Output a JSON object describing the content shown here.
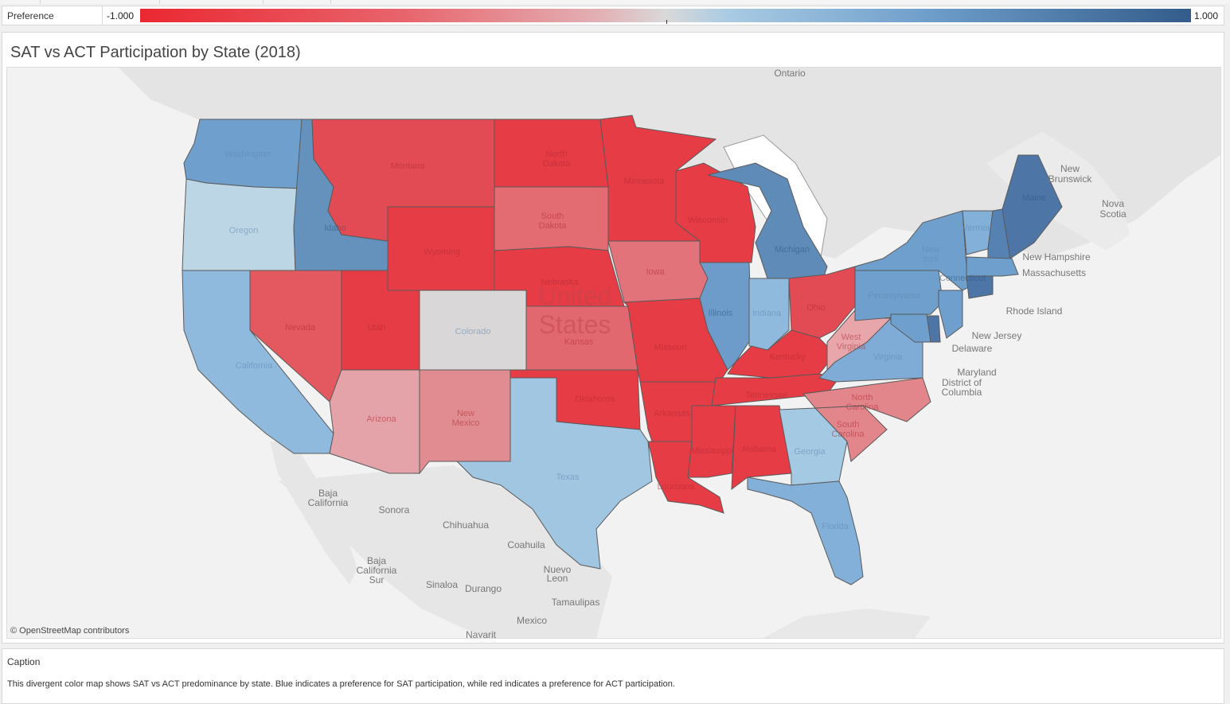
{
  "legend": {
    "title": "Preference",
    "min_label": "-1.000",
    "max_label": "1.000",
    "color_low": "#ea2832",
    "color_mid": "#d9d9d9",
    "color_high": "#335c8b"
  },
  "panel": {
    "title": "SAT vs ACT Participation by State (2018)"
  },
  "map": {
    "attribution": "© OpenStreetMap contributors",
    "country_label_line1": "United",
    "country_label_line2": "States",
    "states": [
      {
        "name": "Washington",
        "color": "#6f9fcc",
        "value": 0.6
      },
      {
        "name": "Oregon",
        "color": "#bcd6e5",
        "value": 0.25
      },
      {
        "name": "California",
        "color": "#8fbade",
        "value": 0.45
      },
      {
        "name": "Idaho",
        "color": "#6591bd",
        "value": 0.7
      },
      {
        "name": "Nevada",
        "color": "#e4585f",
        "value": -0.75
      },
      {
        "name": "Montana",
        "color": "#e34b54",
        "value": -0.85
      },
      {
        "name": "Wyoming",
        "color": "#e63c45",
        "value": -0.95
      },
      {
        "name": "Utah",
        "color": "#e63c45",
        "value": -0.95
      },
      {
        "name": "Arizona",
        "color": "#e3a3a8",
        "value": -0.35
      },
      {
        "name": "Colorado",
        "color": "#d9d7d7",
        "value": 0.0
      },
      {
        "name": "New Mexico",
        "color": "#e18c91",
        "value": -0.5
      },
      {
        "name": "North Dakota",
        "color": "#e63c45",
        "value": -0.95
      },
      {
        "name": "South Dakota",
        "color": "#e26c72",
        "value": -0.65
      },
      {
        "name": "Nebraska",
        "color": "#e63c45",
        "value": -0.95
      },
      {
        "name": "Kansas",
        "color": "#e2686f",
        "value": -0.7
      },
      {
        "name": "Oklahoma",
        "color": "#e63c45",
        "value": -0.95
      },
      {
        "name": "Texas",
        "color": "#a0c6e1",
        "value": 0.35
      },
      {
        "name": "Minnesota",
        "color": "#e63c45",
        "value": -0.95
      },
      {
        "name": "Iowa",
        "color": "#e2737a",
        "value": -0.6
      },
      {
        "name": "Missouri",
        "color": "#e63c45",
        "value": -0.95
      },
      {
        "name": "Arkansas",
        "color": "#e63c45",
        "value": -0.95
      },
      {
        "name": "Louisiana",
        "color": "#e63c45",
        "value": -0.95
      },
      {
        "name": "Wisconsin",
        "color": "#e63c45",
        "value": -0.95
      },
      {
        "name": "Illinois",
        "color": "#6d9cca",
        "value": 0.65
      },
      {
        "name": "Michigan",
        "color": "#5f8bb8",
        "value": 0.75
      },
      {
        "name": "Indiana",
        "color": "#8fbade",
        "value": 0.45
      },
      {
        "name": "Ohio",
        "color": "#e34b54",
        "value": -0.85
      },
      {
        "name": "Kentucky",
        "color": "#e63c45",
        "value": -0.95
      },
      {
        "name": "Tennessee",
        "color": "#e63c45",
        "value": -0.95
      },
      {
        "name": "Mississippi",
        "color": "#e63c45",
        "value": -0.95
      },
      {
        "name": "Alabama",
        "color": "#e63c45",
        "value": -0.95
      },
      {
        "name": "Georgia",
        "color": "#a4c9e2",
        "value": 0.35
      },
      {
        "name": "Florida",
        "color": "#82b0d8",
        "value": 0.5
      },
      {
        "name": "South Carolina",
        "color": "#e3868c",
        "value": -0.5
      },
      {
        "name": "North Carolina",
        "color": "#e3868c",
        "value": -0.5
      },
      {
        "name": "Virginia",
        "color": "#7eacd6",
        "value": 0.55
      },
      {
        "name": "West Virginia",
        "color": "#e8a6ab",
        "value": -0.35
      },
      {
        "name": "Pennsylvania",
        "color": "#6f9fcc",
        "value": 0.6
      },
      {
        "name": "New York",
        "color": "#6f9fcc",
        "value": 0.6
      },
      {
        "name": "Vermont",
        "color": "#82b0d8",
        "value": 0.5
      },
      {
        "name": "New Hampshire",
        "color": "#5582b3",
        "value": 0.8
      },
      {
        "name": "Maine",
        "color": "#4d76a7",
        "value": 0.85
      },
      {
        "name": "Massachusetts",
        "color": "#6f9fcc",
        "value": 0.6
      },
      {
        "name": "Connecticut",
        "color": "#4d76a7",
        "value": 0.85
      },
      {
        "name": "New Jersey",
        "color": "#6f9fcc",
        "value": 0.6
      },
      {
        "name": "Delaware",
        "color": "#4d76a7",
        "value": 0.85
      },
      {
        "name": "Maryland",
        "color": "#6f9fcc",
        "value": 0.6
      }
    ],
    "geo_labels": [
      "Ontario",
      "New Brunswick",
      "Nova Scotia",
      "New Hampshire",
      "Massachusetts",
      "Rhode Island",
      "New Jersey",
      "Delaware",
      "Maryland",
      "District of Columbia",
      "Baja California",
      "Sonora",
      "Chihuahua",
      "Coahuila",
      "Nuevo Leon",
      "Baja California Sur",
      "Sinaloa",
      "Durango",
      "Tamaulipas",
      "Mexico",
      "Nayarit"
    ]
  },
  "caption": {
    "title": "Caption",
    "text": "This divergent color map shows SAT vs ACT predominance by state.  Blue indicates a preference for SAT participation, while red indicates a preference for ACT participation."
  }
}
